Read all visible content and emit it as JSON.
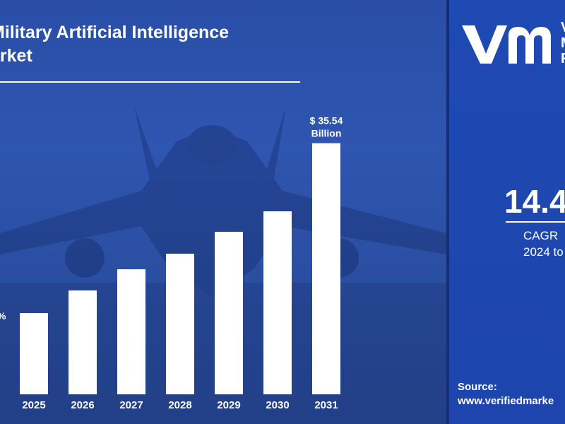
{
  "header": {
    "title_line1": "Military Artificial Intelligence",
    "title_line2": "arket"
  },
  "branding": {
    "logo_text_line1": "V",
    "logo_text_line2": "M",
    "logo_text_line3": "R"
  },
  "stats": {
    "cagr_value": "14.4",
    "cagr_line1": "CAGR",
    "cagr_line2": "2024 to"
  },
  "footer": {
    "source_label": "Source:",
    "source_url": "www.verifiedmarke"
  },
  "colors": {
    "panel_blue": "#2a4ea8",
    "right_panel_blue": "#1f49b3",
    "bar_color": "#ffffff",
    "text_color": "#ffffff"
  },
  "chart_data": {
    "type": "bar",
    "categories": [
      "2025",
      "2026",
      "2027",
      "2028",
      "2029",
      "2030",
      "2031"
    ],
    "values": [
      11.5,
      14.7,
      17.7,
      19.9,
      23.0,
      25.9,
      35.54
    ],
    "ylim": [
      0,
      45
    ],
    "data_labels": [
      {
        "category": "2031",
        "line1": "$ 35.54",
        "line2": "Billion"
      }
    ],
    "partial_label": "%",
    "grid": false,
    "legend": "none"
  }
}
